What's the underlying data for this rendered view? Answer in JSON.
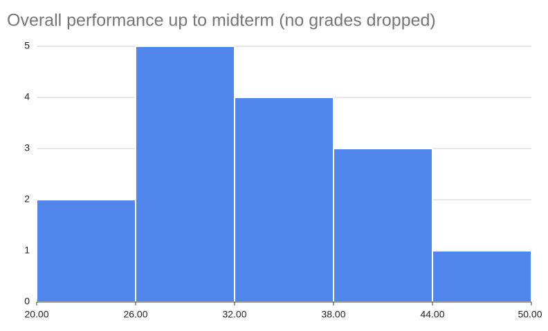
{
  "chart_data": {
    "type": "histogram",
    "title": "Overall performance up to midterm (no grades dropped)",
    "bins": [
      20,
      26,
      32,
      38,
      44,
      50
    ],
    "values": [
      2,
      5,
      4,
      3,
      1
    ],
    "color": "#5086ec",
    "xlim": [
      20,
      50
    ],
    "xticks": [
      {
        "value": 20,
        "label": "20.00"
      },
      {
        "value": 26,
        "label": "26.00"
      },
      {
        "value": 32,
        "label": "32.00"
      },
      {
        "value": 38,
        "label": "38.00"
      },
      {
        "value": 44,
        "label": "44.00"
      },
      {
        "value": 50,
        "label": "50.00"
      }
    ],
    "ylim": [
      0,
      5
    ],
    "yticks": [
      0,
      1,
      2,
      3,
      4,
      5
    ],
    "grid": true
  }
}
